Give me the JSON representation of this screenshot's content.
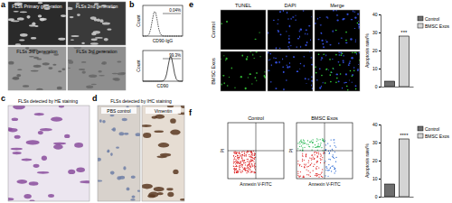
{
  "panels": {
    "a": {
      "letter": "a",
      "images": [
        "FLSs Primary generation",
        "FLSs 2nd generation",
        "FLSs 3rd generation",
        "FLSs 3rd generation"
      ]
    },
    "b": {
      "letter": "b",
      "histograms": [
        {
          "x_label": "CD90-IgG",
          "y_label": "Count",
          "gate": "0.04%"
        },
        {
          "x_label": "CD90",
          "y_label": "Count",
          "gate": "99.3%"
        }
      ]
    },
    "c": {
      "letter": "c",
      "title": "FLSs detected by HE staining"
    },
    "d": {
      "letter": "d",
      "title": "FLSs detected by IHC staining",
      "images": [
        "PBS control",
        "Vimentin"
      ]
    },
    "e": {
      "letter": "e",
      "columns": [
        "TUNEL",
        "DAPI",
        "Merge"
      ],
      "rows": [
        "Control",
        "BMSC Exos"
      ]
    },
    "f": {
      "letter": "f",
      "plots": [
        "Control",
        "BMSC Exos"
      ],
      "x_label": "Annexin V-FITC",
      "y_label": "PI"
    }
  },
  "chart_data": [
    {
      "type": "bar",
      "categories": [
        "Control",
        "BMSC Exos"
      ],
      "values": [
        3,
        28
      ],
      "colors": [
        "#6e6e6e",
        "#d4d4d4"
      ],
      "ylim": [
        0,
        40
      ],
      "yticks": [
        0,
        10,
        20,
        30,
        40
      ],
      "y_label": "Apoptosis rate/%",
      "legend": "right",
      "tick_labels": "y",
      "annotations": [
        "***"
      ]
    },
    {
      "type": "bar",
      "categories": [
        "Control",
        "BMSC Exos"
      ],
      "values": [
        7,
        32
      ],
      "colors": [
        "#6e6e6e",
        "#d4d4d4"
      ],
      "ylim": [
        0,
        40
      ],
      "yticks": [
        0,
        10,
        20,
        30,
        40
      ],
      "y_label": "Apoptosis rate/%",
      "legend": "right",
      "tick_labels": "y",
      "annotations": [
        "****"
      ]
    }
  ]
}
